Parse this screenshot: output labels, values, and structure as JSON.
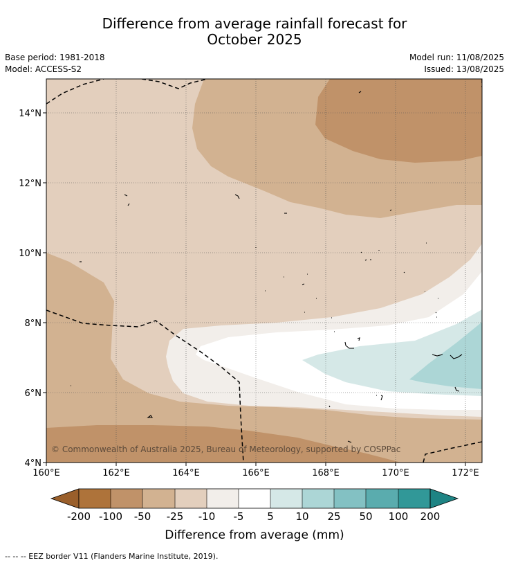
{
  "title_line1": "Difference from average rainfall forecast for",
  "title_line2": "October 2025",
  "meta": {
    "base_period": "Base period: 1981-2018",
    "model": "Model: ACCESS-S2",
    "model_run": "Model run: 11/08/2025",
    "issued": "Issued: 13/08/2025"
  },
  "map": {
    "lon_ticks": [
      "160°E",
      "162°E",
      "164°E",
      "166°E",
      "168°E",
      "170°E",
      "172°E"
    ],
    "lat_ticks": [
      "14°N",
      "12°N",
      "10°N",
      "8°N",
      "6°N",
      "4°N"
    ],
    "copyright": "© Commonwealth of Australia 2025, Bureau of Meteorology, supported by COSPPac"
  },
  "colorbar": {
    "labels": [
      "-200",
      "-100",
      "-50",
      "-25",
      "-10",
      "-5",
      "5",
      "10",
      "25",
      "50",
      "100",
      "200"
    ],
    "colors": [
      "#ae733a",
      "#c09269",
      "#d2b291",
      "#e3cfbd",
      "#f2eeea",
      "#ffffff",
      "#d5e8e7",
      "#acd6d6",
      "#83c1c3",
      "#5aacae",
      "#319898"
    ],
    "under_color": "#9a5f2b",
    "over_color": "#1e8484",
    "title": "Difference from average (mm)"
  },
  "footnote": "--  --  -- EEZ border V11 (Flanders Marine Institute, 2019)."
}
